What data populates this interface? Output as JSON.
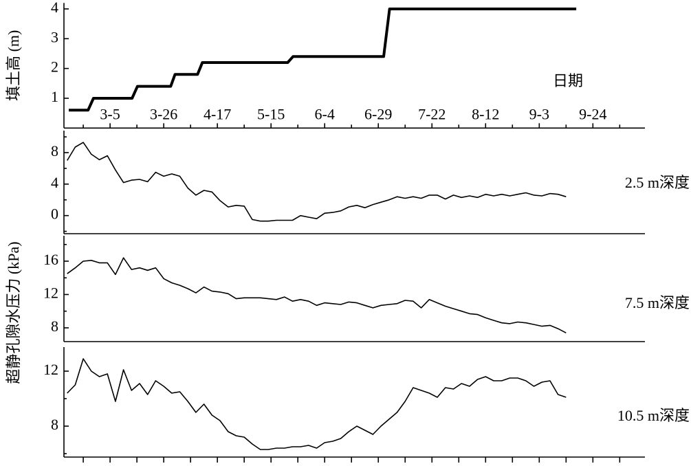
{
  "ylabel": "超静孔隙水压力 (kPa)",
  "chart_data": [
    {
      "type": "line",
      "ylabel": "填土高 (m)",
      "xlabel": "日期",
      "xlim": [
        -0.86,
        9.97
      ],
      "ylim": [
        0,
        4.2
      ],
      "yticks": [
        1,
        2,
        3,
        4
      ],
      "xticks": [
        {
          "value": 0,
          "label": "3-5"
        },
        {
          "value": 1,
          "label": "3-26"
        },
        {
          "value": 2,
          "label": "4-17"
        },
        {
          "value": 3,
          "label": "5-15"
        },
        {
          "value": 4,
          "label": "6-4"
        },
        {
          "value": 5,
          "label": "6-29"
        },
        {
          "value": 6,
          "label": "7-22"
        },
        {
          "value": 7,
          "label": "8-12"
        },
        {
          "value": 8,
          "label": "9-3"
        },
        {
          "value": 9,
          "label": "9-24"
        }
      ],
      "xminorticks": [
        -0.5,
        0.5,
        1.5,
        2.5,
        3.5,
        4.5,
        5.5,
        6.5,
        7.5,
        8.5,
        9.5
      ],
      "color": "#000000",
      "x": [
        -0.77,
        -0.41,
        -0.31,
        0.41,
        0.51,
        1.13,
        1.21,
        1.63,
        1.72,
        3.31,
        3.41,
        5.1,
        5.21,
        8.69
      ],
      "values": [
        0.6,
        0.6,
        1.0,
        1.0,
        1.4,
        1.4,
        1.8,
        1.8,
        2.2,
        2.2,
        2.4,
        2.4,
        4.0,
        4.0
      ]
    },
    {
      "type": "line",
      "annotation": "2.5 m深度",
      "xlim": [
        -0.86,
        9.97
      ],
      "ylim": [
        -2.3,
        10.8
      ],
      "yticks": [
        0,
        4,
        8
      ],
      "yminorticks": [
        -2,
        2,
        6,
        10
      ],
      "color": "#000000",
      "x": [
        -0.8,
        -0.65,
        -0.5,
        -0.35,
        -0.2,
        -0.05,
        0.1,
        0.25,
        0.4,
        0.55,
        0.7,
        0.85,
        1.0,
        1.15,
        1.3,
        1.45,
        1.6,
        1.75,
        1.9,
        2.05,
        2.2,
        2.35,
        2.5,
        2.65,
        2.8,
        2.95,
        3.1,
        3.25,
        3.4,
        3.55,
        3.7,
        3.85,
        4.0,
        4.15,
        4.3,
        4.45,
        4.6,
        4.75,
        4.9,
        5.05,
        5.2,
        5.35,
        5.5,
        5.65,
        5.8,
        5.95,
        6.1,
        6.25,
        6.4,
        6.55,
        6.7,
        6.85,
        7.0,
        7.15,
        7.3,
        7.45,
        7.6,
        7.75,
        7.9,
        8.05,
        8.2,
        8.35,
        8.5
      ],
      "values": [
        7.0,
        8.7,
        9.3,
        7.8,
        7.1,
        7.6,
        5.8,
        4.2,
        4.5,
        4.6,
        4.3,
        5.5,
        5.0,
        5.3,
        5.0,
        3.5,
        2.6,
        3.2,
        3.0,
        1.9,
        1.1,
        1.3,
        1.2,
        -0.5,
        -0.7,
        -0.7,
        -0.6,
        -0.6,
        -0.6,
        0.0,
        -0.2,
        -0.4,
        0.3,
        0.4,
        0.6,
        1.1,
        1.3,
        1.0,
        1.4,
        1.7,
        2.0,
        2.4,
        2.2,
        2.4,
        2.2,
        2.6,
        2.6,
        2.1,
        2.6,
        2.3,
        2.5,
        2.3,
        2.7,
        2.5,
        2.7,
        2.5,
        2.7,
        2.9,
        2.6,
        2.5,
        2.8,
        2.7,
        2.4
      ]
    },
    {
      "type": "line",
      "annotation": "7.5 m深度",
      "xlim": [
        -0.86,
        9.97
      ],
      "ylim": [
        6.35,
        19.05
      ],
      "yticks": [
        8,
        12,
        16
      ],
      "yminorticks": [
        10,
        14,
        18
      ],
      "color": "#000000",
      "x": [
        -0.8,
        -0.65,
        -0.5,
        -0.35,
        -0.2,
        -0.05,
        0.1,
        0.25,
        0.4,
        0.55,
        0.7,
        0.85,
        1.0,
        1.15,
        1.3,
        1.45,
        1.6,
        1.75,
        1.9,
        2.05,
        2.2,
        2.35,
        2.5,
        2.65,
        2.8,
        2.95,
        3.1,
        3.25,
        3.4,
        3.55,
        3.7,
        3.85,
        4.0,
        4.15,
        4.3,
        4.45,
        4.6,
        4.75,
        4.9,
        5.05,
        5.2,
        5.35,
        5.5,
        5.65,
        5.8,
        5.95,
        6.1,
        6.25,
        6.4,
        6.55,
        6.7,
        6.85,
        7.0,
        7.15,
        7.3,
        7.45,
        7.6,
        7.75,
        7.9,
        8.05,
        8.2,
        8.35,
        8.5
      ],
      "values": [
        14.5,
        15.2,
        16.0,
        16.1,
        15.8,
        15.8,
        14.4,
        16.4,
        15.0,
        15.2,
        14.9,
        15.2,
        13.9,
        13.4,
        13.1,
        12.7,
        12.2,
        12.9,
        12.4,
        12.3,
        12.1,
        11.5,
        11.6,
        11.6,
        11.6,
        11.5,
        11.4,
        11.7,
        11.2,
        11.4,
        11.2,
        10.7,
        11.0,
        10.9,
        10.8,
        11.1,
        11.0,
        10.7,
        10.4,
        10.7,
        10.8,
        10.9,
        11.3,
        11.2,
        10.4,
        11.4,
        11.0,
        10.6,
        10.3,
        10.0,
        9.7,
        9.6,
        9.2,
        8.9,
        8.6,
        8.5,
        8.7,
        8.6,
        8.4,
        8.2,
        8.3,
        7.9,
        7.4
      ]
    },
    {
      "type": "line",
      "annotation": "10.5 m深度",
      "xlim": [
        -0.86,
        9.97
      ],
      "ylim": [
        5.75,
        13.75
      ],
      "yticks": [
        8,
        12
      ],
      "yminorticks": [
        6,
        10
      ],
      "xminorticks": [
        -0.5,
        0,
        0.5,
        1,
        1.5,
        2,
        2.5,
        3,
        3.5,
        4,
        4.5,
        5,
        5.5,
        6,
        6.5,
        7,
        7.5,
        8,
        8.5,
        9,
        9.5
      ],
      "color": "#000000",
      "x": [
        -0.8,
        -0.65,
        -0.5,
        -0.35,
        -0.2,
        -0.05,
        0.1,
        0.25,
        0.4,
        0.55,
        0.7,
        0.85,
        1.0,
        1.15,
        1.3,
        1.45,
        1.6,
        1.75,
        1.9,
        2.05,
        2.2,
        2.35,
        2.5,
        2.65,
        2.8,
        2.95,
        3.1,
        3.25,
        3.4,
        3.55,
        3.7,
        3.85,
        4.0,
        4.15,
        4.3,
        4.45,
        4.6,
        4.75,
        4.9,
        5.05,
        5.2,
        5.35,
        5.5,
        5.65,
        5.8,
        5.95,
        6.1,
        6.25,
        6.4,
        6.55,
        6.7,
        6.85,
        7.0,
        7.15,
        7.3,
        7.45,
        7.6,
        7.75,
        7.9,
        8.05,
        8.2,
        8.35,
        8.5
      ],
      "values": [
        10.4,
        11.0,
        12.9,
        12.0,
        11.6,
        11.8,
        9.8,
        12.1,
        10.6,
        11.1,
        10.3,
        11.3,
        10.9,
        10.4,
        10.5,
        9.8,
        9.0,
        9.6,
        8.8,
        8.4,
        7.6,
        7.3,
        7.2,
        6.7,
        6.3,
        6.3,
        6.4,
        6.4,
        6.5,
        6.5,
        6.6,
        6.4,
        6.8,
        6.9,
        7.1,
        7.6,
        8.0,
        7.7,
        7.4,
        8.0,
        8.5,
        9.0,
        9.8,
        10.8,
        10.6,
        10.4,
        10.1,
        10.8,
        10.7,
        11.1,
        10.9,
        11.4,
        11.6,
        11.3,
        11.3,
        11.5,
        11.5,
        11.3,
        10.9,
        11.2,
        11.3,
        10.3,
        10.1
      ]
    }
  ]
}
